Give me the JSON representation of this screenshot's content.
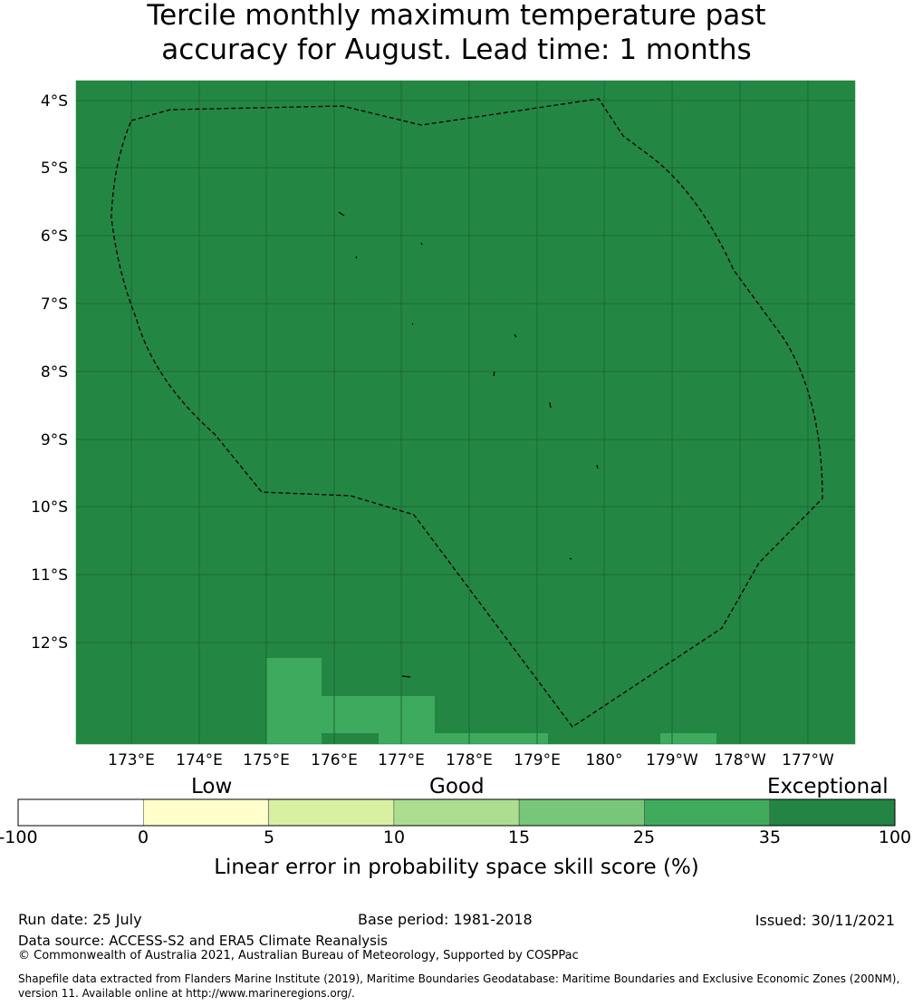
{
  "title_line1": "Tercile monthly maximum temperature past",
  "title_line2": "accuracy for August. Lead time: 1 months",
  "map": {
    "lat_labels": [
      "4°S",
      "5°S",
      "6°S",
      "7°S",
      "8°S",
      "9°S",
      "10°S",
      "11°S",
      "12°S"
    ],
    "lon_labels": [
      "173°E",
      "174°E",
      "175°E",
      "176°E",
      "177°E",
      "178°E",
      "179°E",
      "180°",
      "179°W",
      "178°W",
      "177°W"
    ],
    "background_color": "#248643",
    "patch_color": "#3daa5d"
  },
  "colorbar": {
    "categories": [
      "Low",
      "Good",
      "Exceptional"
    ],
    "ticks": [
      "-100",
      "0",
      "5",
      "10",
      "15",
      "25",
      "35",
      "100"
    ],
    "colors": [
      "#ffffff",
      "#ffffcc",
      "#d9f0a3",
      "#addd8e",
      "#78c679",
      "#41ab5d",
      "#238443"
    ],
    "label": "Linear error in probability space skill score (%)"
  },
  "footer": {
    "run_date": "Run date: 25 July",
    "base_period": "Base period: 1981-2018",
    "issued": "Issued: 30/11/2021",
    "data_source": "Data source: ACCESS-S2 and ERA5 Climate Reanalysis",
    "copyright": "© Commonwealth of Australia 2021, Australian Bureau of Meteorology, Supported by COSPPac",
    "shapefile": "Shapefile data extracted from Flanders Marine Institute (2019), Maritime Boundaries Geodatabase: Maritime Boundaries and Exclusive Economic Zones (200NM), version 11. Available online at http://www.marineregions.org/."
  }
}
